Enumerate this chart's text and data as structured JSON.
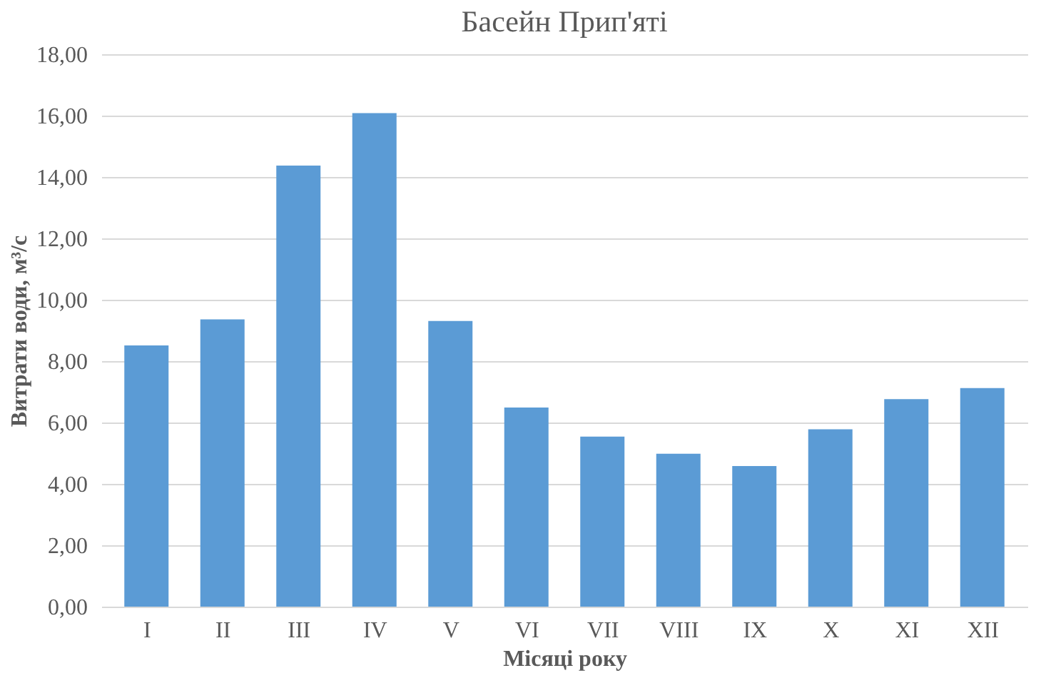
{
  "chart_data": {
    "type": "bar",
    "title": "Басейн Прип'яті",
    "xlabel": "Місяці року",
    "ylabel": "Витрати води, м³/с",
    "categories": [
      "I",
      "II",
      "III",
      "IV",
      "V",
      "VI",
      "VII",
      "VIII",
      "IX",
      "X",
      "XI",
      "XII"
    ],
    "values": [
      8.51,
      9.36,
      14.37,
      16.08,
      9.31,
      6.49,
      5.54,
      4.98,
      4.58,
      5.78,
      6.76,
      7.12
    ],
    "color": "#5b9bd5",
    "ylim": [
      0,
      18
    ],
    "yticks": [
      {
        "value": 0,
        "label": "0,00"
      },
      {
        "value": 2,
        "label": "2,00"
      },
      {
        "value": 4,
        "label": "4,00"
      },
      {
        "value": 6,
        "label": "6,00"
      },
      {
        "value": 8,
        "label": "8,00"
      },
      {
        "value": 10,
        "label": "10,00"
      },
      {
        "value": 12,
        "label": "12,00"
      },
      {
        "value": 14,
        "label": "14,00"
      },
      {
        "value": 16,
        "label": "16,00"
      },
      {
        "value": 18,
        "label": "18,00"
      }
    ],
    "grid": "y"
  }
}
